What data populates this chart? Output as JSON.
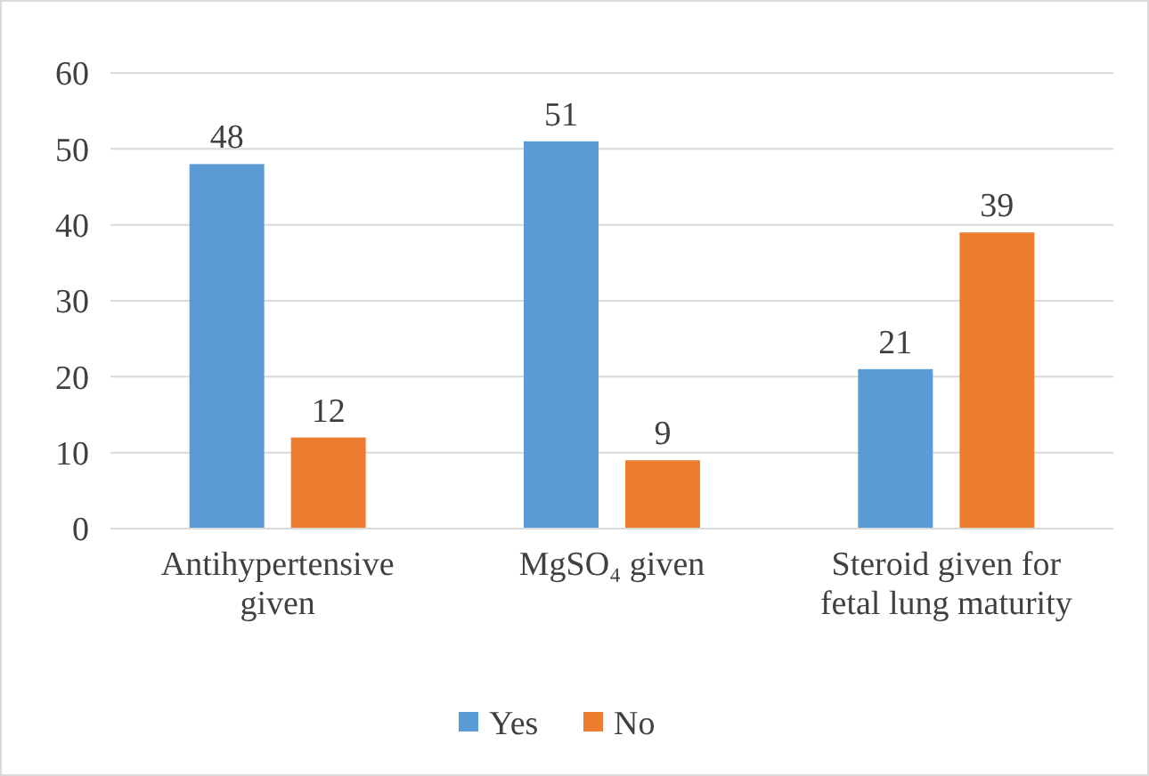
{
  "chart_data": {
    "type": "bar",
    "categories": [
      "Antihypertensive given",
      "MgSO₄ given",
      "Steroid given for fetal lung maturity"
    ],
    "series": [
      {
        "name": "Yes",
        "color": "#5b9bd5",
        "values": [
          48,
          51,
          21
        ]
      },
      {
        "name": "No",
        "color": "#ed7d31",
        "values": [
          12,
          9,
          39
        ]
      }
    ],
    "ylim": [
      0,
      60
    ],
    "yticks": [
      0,
      10,
      20,
      30,
      40,
      50,
      60
    ],
    "grid": "y",
    "legend": "bottom",
    "data_labels": true
  }
}
